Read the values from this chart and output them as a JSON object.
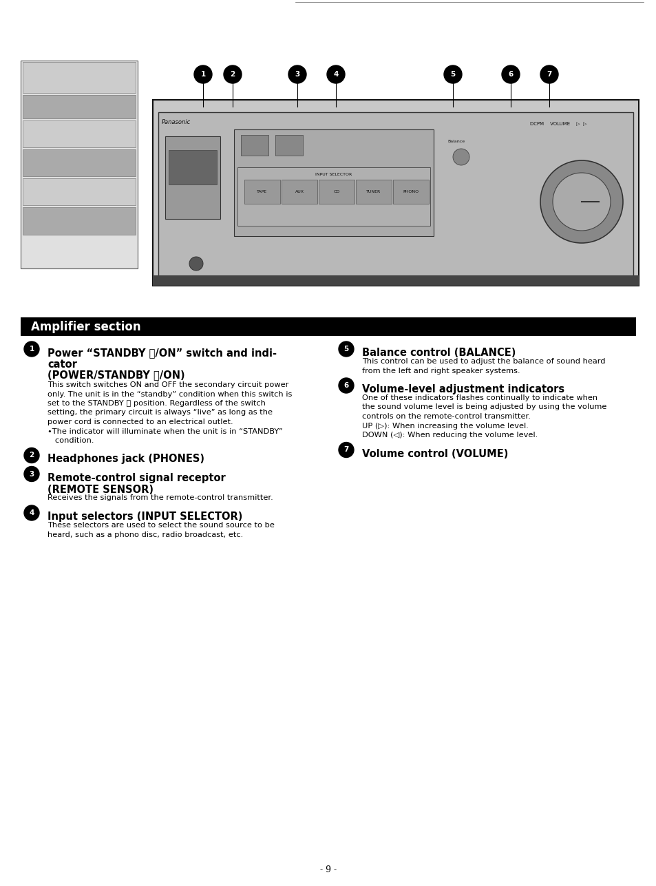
{
  "page_bg": "#ffffff",
  "section_header": "Amplifier section",
  "section_header_bg": "#000000",
  "section_header_color": "#ffffff",
  "page_number": "- 9 -",
  "left_items": [
    {
      "num": "1",
      "title_bold": "Power “STANDBY ⏻/ON” switch and indi-\ncator",
      "subtitle": "(POWER/STANDBY ⏻/ON)",
      "body": "This switch switches ON and OFF the secondary circuit power\nonly. The unit is in the “standby” condition when this switch is\nset to the STANDBY ⏻ position. Regardless of the switch\nsetting, the primary circuit is always “live” as long as the\npower cord is connected to an electrical outlet.\n•The indicator will illuminate when the unit is in “STANDBY”\n   condition."
    },
    {
      "num": "2",
      "title_bold": "Headphones jack (PHONES)",
      "subtitle": "",
      "body": ""
    },
    {
      "num": "3",
      "title_bold": "Remote-control signal receptor\n(REMOTE SENSOR)",
      "subtitle": "",
      "body": "Receives the signals from the remote-control transmitter."
    },
    {
      "num": "4",
      "title_bold": "Input selectors (INPUT SELECTOR)",
      "subtitle": "",
      "body": "These selectors are used to select the sound source to be\nheard, such as a phono disc, radio broadcast, etc."
    }
  ],
  "right_items": [
    {
      "num": "5",
      "title_bold": "Balance control (BALANCE)",
      "subtitle": "",
      "body": "This control can be used to adjust the balance of sound heard\nfrom the left and right speaker systems."
    },
    {
      "num": "6",
      "title_bold": "Volume-level adjustment indicators",
      "subtitle": "",
      "body": "One of these indicators flashes continually to indicate when\nthe sound volume level is being adjusted by using the volume\ncontrols on the remote-control transmitter.\nUP (▷): When increasing the volume level.\nDOWN (◁): When reducing the volume level."
    },
    {
      "num": "7",
      "title_bold": "Volume control (VOLUME)",
      "subtitle": "",
      "body": ""
    }
  ],
  "fig_w": 9.54,
  "fig_h": 12.87,
  "dpi": 100
}
